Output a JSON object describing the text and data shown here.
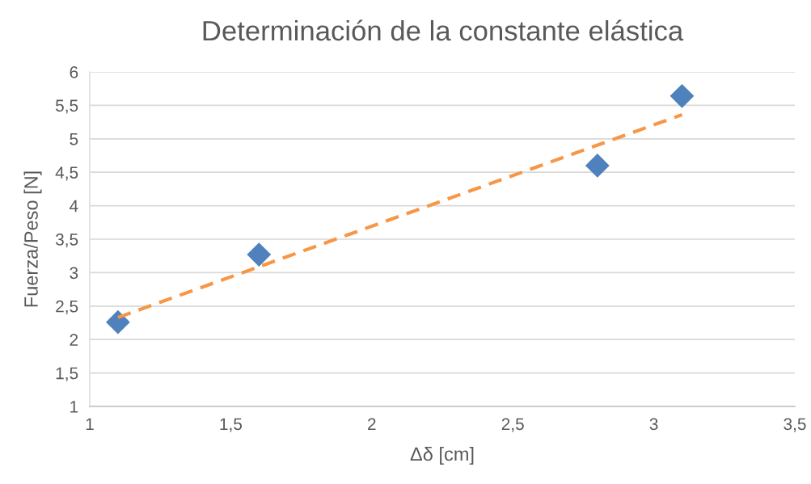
{
  "chart_data": {
    "type": "scatter",
    "title": "Determinación de la constante elástica",
    "xlabel": "Δδ [cm]",
    "ylabel": "Fuerza/Peso [N]",
    "series": [
      {
        "color": "#4f81bd",
        "marker": "diamond",
        "x": [
          1.1,
          1.6,
          2.8,
          3.1
        ],
        "values": [
          2.26,
          3.27,
          4.6,
          5.64
        ]
      },
      {
        "type": "line",
        "color": "#f79646",
        "line_style": "dashed",
        "marker": "none",
        "x": [
          1.1,
          3.1
        ],
        "values": [
          2.33,
          5.36
        ]
      }
    ],
    "xlim": [
      1,
      3.5
    ],
    "xticks": [
      1,
      {
        "value": 1.5,
        "label": "1,5"
      },
      2,
      {
        "value": 2.5,
        "label": "2,5"
      },
      3,
      {
        "value": 3.5,
        "label": "3,5"
      }
    ],
    "ylim": [
      1,
      6
    ],
    "yticks": [
      1,
      {
        "value": 1.5,
        "label": "1,5"
      },
      2,
      {
        "value": 2.5,
        "label": "2,5"
      },
      3,
      {
        "value": 3.5,
        "label": "3,5"
      },
      4,
      {
        "value": 4.5,
        "label": "4,5"
      },
      5,
      {
        "value": 5.5,
        "label": "5,5"
      },
      6
    ],
    "grid": "y",
    "legend": false
  }
}
